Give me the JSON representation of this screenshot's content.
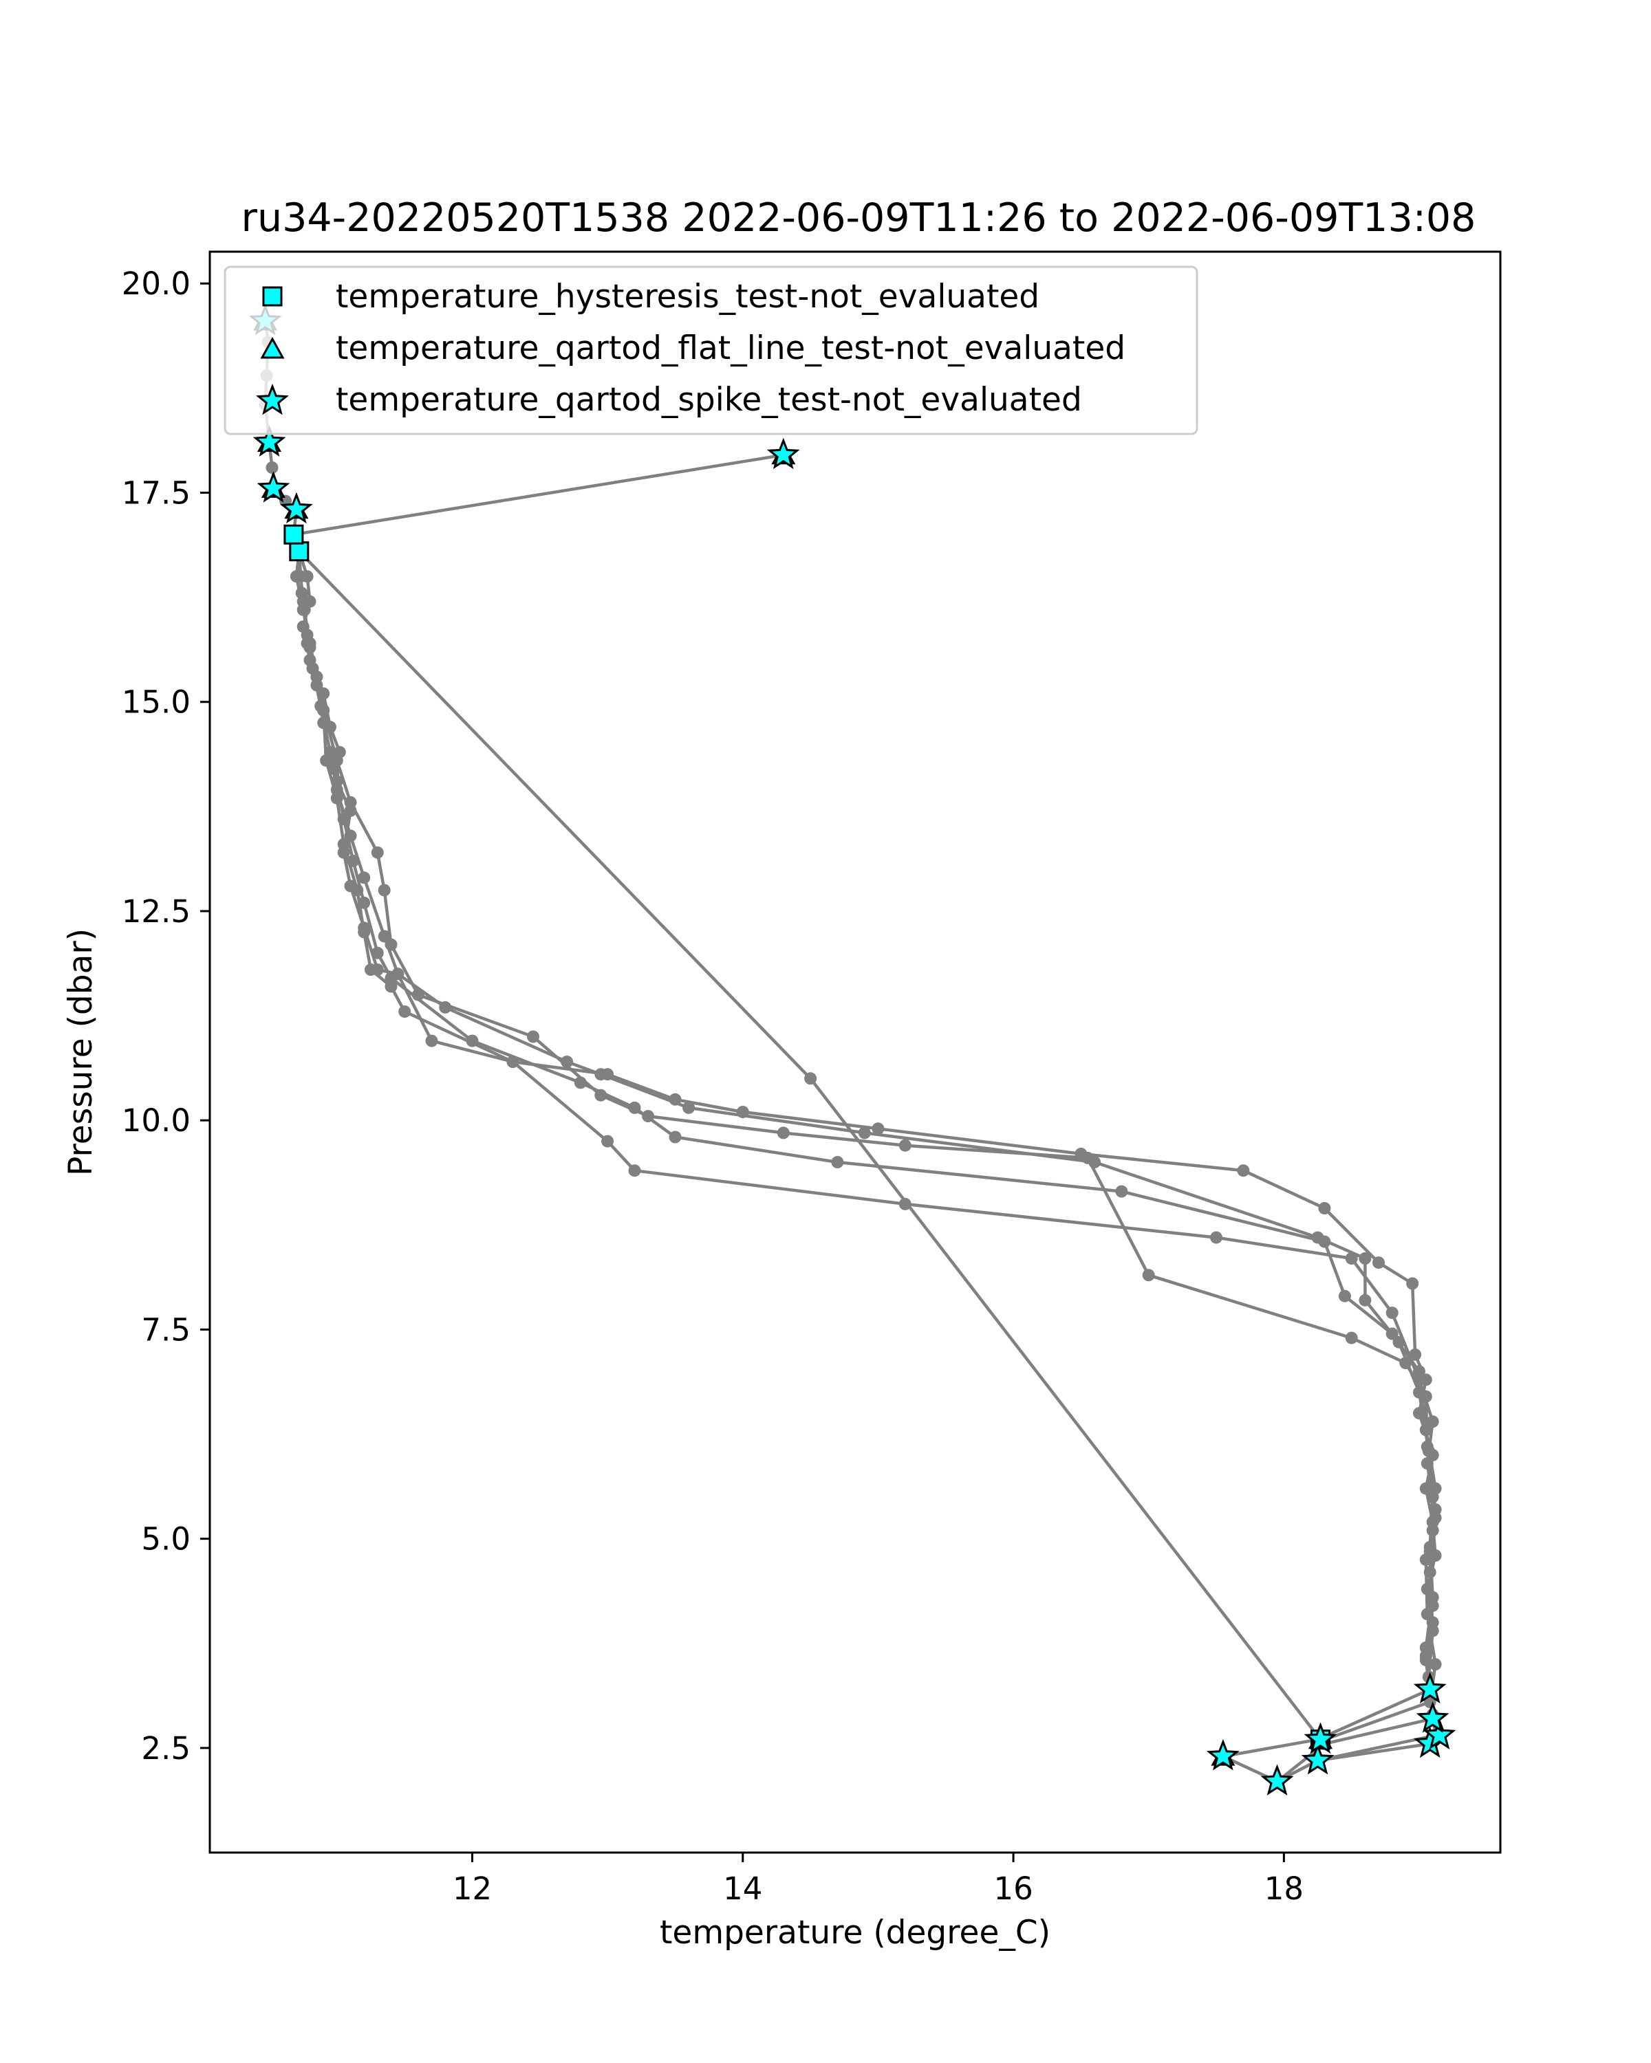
{
  "chart_data": {
    "type": "line",
    "title": "ru34-20220520T1538 2022-06-09T11:26 to 2022-06-09T13:08",
    "xlabel": "temperature (degree_C)",
    "ylabel": "Pressure (dbar)",
    "xlim": [
      10.06,
      19.6
    ],
    "ylim": [
      20.38,
      1.25
    ],
    "y_inverted": true,
    "xticks": [
      12,
      14,
      16,
      18
    ],
    "yticks": [
      2.5,
      5.0,
      7.5,
      10.0,
      12.5,
      15.0,
      17.5,
      20.0
    ],
    "xtick_labels": [
      "12",
      "14",
      "16",
      "18"
    ],
    "ytick_labels": [
      "2.5",
      "5.0",
      "7.5",
      "10.0",
      "12.5",
      "15.0",
      "17.5",
      "20.0"
    ],
    "grid": false,
    "legend_position": "upper-left",
    "line_color": "#808080",
    "marker_color": "#00ffff",
    "series": [
      {
        "points": [
          [
            10.47,
            19.55
          ],
          [
            10.49,
            19.3
          ],
          [
            10.48,
            18.9
          ],
          [
            10.47,
            18.55
          ],
          [
            10.5,
            18.1
          ],
          [
            10.52,
            17.8
          ],
          [
            10.55,
            17.55
          ],
          [
            10.62,
            17.4
          ],
          [
            10.7,
            17.3
          ],
          [
            10.68,
            17.0
          ],
          [
            10.72,
            16.8
          ],
          [
            10.78,
            16.5
          ],
          [
            10.8,
            16.2
          ],
          [
            10.75,
            15.9
          ],
          [
            10.8,
            15.5
          ],
          [
            10.9,
            15.1
          ],
          [
            10.95,
            14.7
          ],
          [
            11.02,
            14.4
          ],
          [
            11.0,
            14.05
          ],
          [
            11.1,
            13.7
          ],
          [
            11.05,
            13.2
          ],
          [
            11.1,
            12.8
          ],
          [
            11.2,
            12.3
          ],
          [
            11.3,
            11.8
          ],
          [
            11.45,
            11.75
          ],
          [
            11.7,
            10.95
          ],
          [
            12.3,
            10.7
          ],
          [
            13.0,
            10.55
          ],
          [
            13.5,
            10.25
          ],
          [
            14.0,
            10.1
          ],
          [
            15.0,
            9.9
          ],
          [
            16.5,
            9.6
          ],
          [
            17.7,
            9.4
          ],
          [
            18.3,
            8.95
          ],
          [
            18.7,
            8.3
          ],
          [
            18.95,
            8.05
          ],
          [
            18.97,
            7.2
          ],
          [
            19.05,
            6.9
          ],
          [
            19.0,
            6.5
          ],
          [
            19.1,
            6.0
          ],
          [
            19.05,
            5.6
          ],
          [
            19.1,
            5.2
          ],
          [
            19.12,
            4.8
          ],
          [
            19.06,
            4.4
          ],
          [
            19.1,
            4.0
          ],
          [
            19.05,
            3.6
          ],
          [
            19.08,
            3.2
          ],
          [
            19.1,
            2.9
          ],
          [
            19.12,
            2.65
          ]
        ]
      },
      {
        "points": [
          [
            19.12,
            2.65
          ],
          [
            18.25,
            2.35
          ],
          [
            17.95,
            2.1
          ],
          [
            17.55,
            2.4
          ],
          [
            18.25,
            2.6
          ],
          [
            19.08,
            3.2
          ],
          [
            19.05,
            3.7
          ],
          [
            19.1,
            4.3
          ],
          [
            19.08,
            4.9
          ],
          [
            19.1,
            5.5
          ],
          [
            19.06,
            6.1
          ],
          [
            19.05,
            6.7
          ],
          [
            18.9,
            7.1
          ],
          [
            18.5,
            7.4
          ],
          [
            17.0,
            8.15
          ],
          [
            16.55,
            9.55
          ],
          [
            15.2,
            9.7
          ],
          [
            14.3,
            9.85
          ],
          [
            13.3,
            10.05
          ],
          [
            12.95,
            10.3
          ],
          [
            12.45,
            11.0
          ],
          [
            11.6,
            11.5
          ],
          [
            11.4,
            12.1
          ],
          [
            11.35,
            12.75
          ],
          [
            11.3,
            13.2
          ],
          [
            11.1,
            13.8
          ],
          [
            11.0,
            14.3
          ],
          [
            10.9,
            14.9
          ],
          [
            10.85,
            15.3
          ],
          [
            10.8,
            15.7
          ],
          [
            10.75,
            16.1
          ],
          [
            10.7,
            16.5
          ],
          [
            10.72,
            16.8
          ],
          [
            10.68,
            17.0
          ],
          [
            14.3,
            17.95
          ]
        ]
      },
      {
        "points": [
          [
            18.3,
            2.6
          ],
          [
            19.08,
            3.05
          ],
          [
            19.12,
            3.5
          ],
          [
            19.06,
            4.1
          ],
          [
            19.05,
            4.75
          ],
          [
            19.12,
            5.25
          ],
          [
            19.06,
            5.9
          ],
          [
            19.1,
            6.4
          ],
          [
            19.0,
            6.9
          ],
          [
            18.8,
            7.7
          ],
          [
            18.5,
            8.35
          ],
          [
            17.5,
            8.6
          ],
          [
            15.2,
            9.0
          ],
          [
            13.2,
            9.4
          ],
          [
            13.0,
            9.75
          ],
          [
            12.3,
            10.7
          ],
          [
            11.5,
            11.3
          ],
          [
            11.4,
            11.6
          ],
          [
            11.25,
            11.8
          ],
          [
            11.2,
            12.25
          ],
          [
            11.15,
            12.75
          ],
          [
            11.05,
            13.3
          ],
          [
            11.0,
            13.85
          ],
          [
            10.92,
            14.3
          ],
          [
            10.9,
            14.9
          ],
          [
            10.85,
            15.3
          ],
          [
            10.78,
            15.7
          ],
          [
            10.75,
            16.2
          ],
          [
            10.73,
            16.5
          ],
          [
            10.72,
            16.8
          ]
        ]
      },
      {
        "points": [
          [
            19.08,
            2.55
          ],
          [
            18.25,
            2.35
          ],
          [
            17.95,
            2.1
          ],
          [
            18.3,
            2.55
          ],
          [
            19.1,
            2.85
          ],
          [
            19.07,
            3.35
          ],
          [
            19.1,
            3.9
          ],
          [
            19.08,
            4.6
          ],
          [
            19.1,
            5.1
          ],
          [
            19.12,
            5.6
          ],
          [
            19.05,
            6.3
          ],
          [
            19.0,
            7.0
          ],
          [
            18.8,
            7.45
          ],
          [
            18.45,
            7.9
          ],
          [
            18.3,
            8.55
          ],
          [
            16.8,
            9.15
          ],
          [
            14.7,
            9.5
          ],
          [
            13.5,
            9.8
          ],
          [
            13.2,
            10.15
          ],
          [
            12.8,
            10.45
          ],
          [
            12.0,
            10.95
          ],
          [
            11.4,
            11.7
          ],
          [
            11.3,
            12.0
          ],
          [
            11.2,
            12.6
          ],
          [
            11.12,
            13.1
          ],
          [
            11.05,
            13.6
          ],
          [
            10.98,
            14.2
          ],
          [
            10.9,
            14.75
          ],
          [
            10.85,
            15.2
          ],
          [
            10.8,
            15.65
          ],
          [
            10.76,
            16.1
          ],
          [
            10.73,
            16.5
          ]
        ]
      },
      {
        "points": [
          [
            19.1,
            2.9
          ],
          [
            19.05,
            3.55
          ],
          [
            19.1,
            4.2
          ],
          [
            19.08,
            4.85
          ],
          [
            19.12,
            5.35
          ],
          [
            19.07,
            6.05
          ],
          [
            19.0,
            6.75
          ],
          [
            18.85,
            7.35
          ],
          [
            18.6,
            7.85
          ],
          [
            18.6,
            8.35
          ],
          [
            18.25,
            8.6
          ],
          [
            16.6,
            9.5
          ],
          [
            14.9,
            9.85
          ],
          [
            13.6,
            10.15
          ],
          [
            12.95,
            10.55
          ],
          [
            12.7,
            10.7
          ],
          [
            11.8,
            11.35
          ],
          [
            11.45,
            11.75
          ],
          [
            11.35,
            12.2
          ],
          [
            11.2,
            12.9
          ],
          [
            11.1,
            13.4
          ],
          [
            11.0,
            13.95
          ],
          [
            10.95,
            14.4
          ],
          [
            10.88,
            14.95
          ],
          [
            10.82,
            15.4
          ],
          [
            10.78,
            15.8
          ],
          [
            10.74,
            16.3
          ],
          [
            10.72,
            16.8
          ]
        ]
      },
      {
        "points": [
          [
            10.72,
            16.8
          ],
          [
            14.5,
            10.5
          ],
          [
            18.27,
            2.6
          ]
        ]
      }
    ],
    "legend": [
      {
        "label": "temperature_hysteresis_test-not_evaluated",
        "marker": "square"
      },
      {
        "label": "temperature_qartod_flat_line_test-not_evaluated",
        "marker": "triangle"
      },
      {
        "label": "temperature_qartod_spike_test-not_evaluated",
        "marker": "star"
      }
    ],
    "flagged": {
      "hysteresis": [
        [
          10.72,
          16.8
        ],
        [
          10.68,
          17.0
        ],
        [
          18.27,
          2.6
        ]
      ],
      "flat_line": [
        [
          10.47,
          19.55
        ],
        [
          10.5,
          18.1
        ],
        [
          10.53,
          17.55
        ],
        [
          10.7,
          17.3
        ],
        [
          14.3,
          17.95
        ],
        [
          18.27,
          2.6
        ],
        [
          17.55,
          2.4
        ]
      ],
      "spike": [
        [
          10.47,
          19.55
        ],
        [
          10.5,
          18.1
        ],
        [
          10.53,
          17.55
        ],
        [
          10.7,
          17.3
        ],
        [
          14.3,
          17.95
        ],
        [
          17.55,
          2.4
        ],
        [
          17.95,
          2.1
        ],
        [
          18.25,
          2.35
        ],
        [
          18.27,
          2.6
        ],
        [
          19.08,
          2.55
        ],
        [
          19.15,
          2.65
        ],
        [
          19.1,
          2.85
        ],
        [
          19.08,
          3.2
        ]
      ]
    }
  }
}
